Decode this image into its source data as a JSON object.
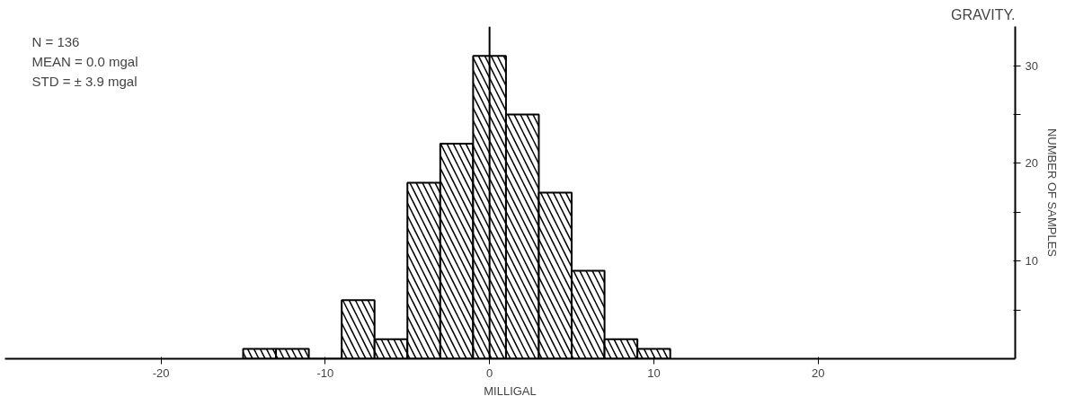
{
  "chart_data": {
    "type": "histogram",
    "title": "GRAVITY.",
    "xlabel": "MILLIGAL",
    "ylabel": "NUMBER OF SAMPLES",
    "bins": [
      -15,
      -13,
      -11,
      -9,
      -7,
      -5,
      -3,
      -1,
      1,
      3,
      5,
      7,
      9,
      11
    ],
    "values": [
      1,
      1,
      0,
      6,
      2,
      18,
      22,
      31,
      25,
      17,
      9,
      2,
      1
    ],
    "color": "#ffffff",
    "xlim": [
      -29.5,
      32
    ],
    "xticks": [
      {
        "value": -20,
        "label": "-20"
      },
      {
        "value": -10,
        "label": "-10"
      },
      0,
      10,
      20
    ],
    "ylim": [
      0,
      34
    ],
    "yticks": [
      {
        "value": 5,
        "label": null
      },
      10,
      {
        "value": 15,
        "label": null
      },
      20,
      {
        "value": 25,
        "label": null
      },
      30
    ],
    "ref_lines": [
      {
        "axis": "x",
        "value": 0,
        "label": null
      }
    ],
    "annotations": [
      "N = 136",
      "MEAN = 0.0 mgal",
      "STD = ± 3.9 mgal"
    ],
    "grid": false
  }
}
